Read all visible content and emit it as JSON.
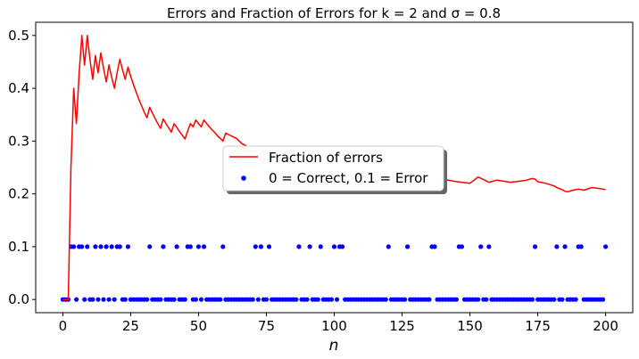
{
  "chart_data": {
    "type": "line",
    "title": "Errors and Fraction of Errors for k = 2 and σ = 0.8",
    "xlabel": "n",
    "ylabel": "",
    "xlim": [
      -10,
      210
    ],
    "ylim": [
      -0.025,
      0.525
    ],
    "xticks": [
      0,
      25,
      50,
      75,
      100,
      125,
      150,
      175,
      200
    ],
    "yticks": [
      0.0,
      0.1,
      0.2,
      0.3,
      0.4,
      0.5
    ],
    "grid": false,
    "legend_position": "center",
    "series": [
      {
        "name": "Fraction of errors",
        "kind": "line",
        "color": "#ff0000",
        "x": [
          0,
          1,
          2,
          3,
          4,
          5,
          6,
          7,
          8,
          9,
          10,
          11,
          12,
          13,
          14,
          15,
          16,
          17,
          18,
          19,
          20,
          21,
          22,
          23,
          24,
          25,
          26,
          27,
          28,
          29,
          30,
          31,
          32,
          33,
          34,
          35,
          36,
          37,
          38,
          39,
          40,
          41,
          42,
          43,
          44,
          45,
          46,
          47,
          48,
          49,
          50,
          51,
          52,
          53,
          54,
          55,
          56,
          57,
          58,
          59,
          60,
          62,
          64,
          66,
          68,
          70,
          75,
          80,
          90,
          100,
          110,
          120,
          130,
          140,
          144,
          147,
          150,
          153,
          155,
          157,
          160,
          165,
          170,
          173,
          174,
          175,
          178,
          181,
          182,
          184,
          185,
          186,
          188,
          190,
          192,
          195,
          198,
          200
        ],
        "y": [
          0.0,
          0.0,
          0.0,
          0.25,
          0.4,
          0.333,
          0.429,
          0.5,
          0.444,
          0.5,
          0.455,
          0.417,
          0.462,
          0.429,
          0.467,
          0.438,
          0.412,
          0.444,
          0.421,
          0.4,
          0.429,
          0.455,
          0.435,
          0.417,
          0.44,
          0.423,
          0.407,
          0.393,
          0.379,
          0.367,
          0.355,
          0.344,
          0.364,
          0.353,
          0.343,
          0.333,
          0.324,
          0.342,
          0.333,
          0.325,
          0.317,
          0.333,
          0.326,
          0.318,
          0.311,
          0.304,
          0.319,
          0.333,
          0.327,
          0.34,
          0.333,
          0.327,
          0.34,
          0.333,
          0.327,
          0.321,
          0.316,
          0.31,
          0.305,
          0.3,
          0.315,
          0.31,
          0.305,
          0.295,
          0.29,
          0.285,
          0.275,
          0.268,
          0.255,
          0.248,
          0.24,
          0.235,
          0.232,
          0.228,
          0.224,
          0.222,
          0.22,
          0.232,
          0.227,
          0.222,
          0.226,
          0.222,
          0.225,
          0.229,
          0.228,
          0.223,
          0.22,
          0.215,
          0.212,
          0.208,
          0.205,
          0.204,
          0.207,
          0.209,
          0.207,
          0.212,
          0.21,
          0.208
        ]
      },
      {
        "name": "0 = Correct, 0.1 = Error",
        "kind": "scatter",
        "color": "#0000ff",
        "error_n": [
          3,
          4,
          6,
          7,
          9,
          12,
          14,
          16,
          18,
          20,
          21,
          24,
          32,
          37,
          42,
          46,
          47,
          50,
          52,
          59,
          71,
          73,
          76,
          87,
          91,
          95,
          100,
          102,
          103,
          120,
          127,
          136,
          137,
          146,
          147,
          154,
          157,
          174,
          182,
          185,
          190,
          191,
          200
        ],
        "x_range": [
          0,
          200
        ],
        "error_value": 0.1,
        "correct_value": 0.0
      }
    ]
  }
}
